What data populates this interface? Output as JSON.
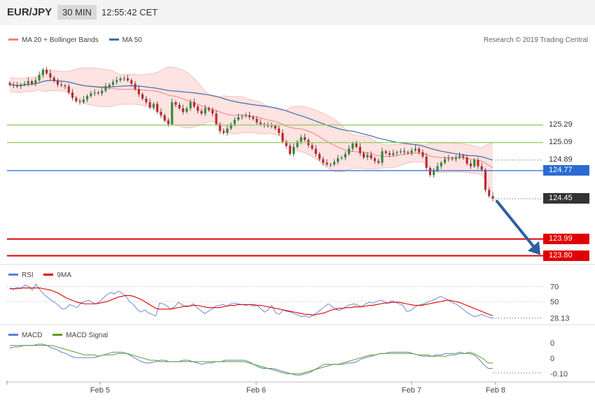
{
  "header": {
    "symbol": "EUR/JPY",
    "timeframe": "30 MIN",
    "time": "12:55:42 CET"
  },
  "credit": "Research © 2019 Trading Central",
  "colors": {
    "bollinger": "#f08080",
    "bollinger_fill": "#fde3e1",
    "ma50": "#3e6ea8",
    "candle_up": "#2e8b3a",
    "candle_down": "#c0272d",
    "resistance": "#8fca5a",
    "support": "#e00000",
    "pivot": "#2a6bd1",
    "last": "#333333",
    "arrow": "#2f5f9e",
    "rsi": "#5a7fd6",
    "rsi_ma": "#e00000",
    "macd": "#5a7fd6",
    "macd_signal": "#5aa01e"
  },
  "chart_data": [
    {
      "type": "candlestick",
      "title": "EUR/JPY",
      "timeframe": "30 MIN",
      "legend": [
        {
          "label": "MA 20 + Bollinger Bands",
          "color": "#f08080"
        },
        {
          "label": "MA 50",
          "color": "#3e6ea8"
        }
      ],
      "x_labels": [
        "Feb 5",
        "Feb 6",
        "Feb 7",
        "Feb 8"
      ],
      "ylim": [
        123.7,
        126.3
      ],
      "close": [
        125.75,
        125.74,
        125.73,
        125.75,
        125.76,
        125.79,
        125.76,
        125.8,
        125.86,
        125.92,
        125.88,
        125.83,
        125.79,
        125.75,
        125.74,
        125.73,
        125.66,
        125.6,
        125.56,
        125.55,
        125.58,
        125.62,
        125.65,
        125.66,
        125.65,
        125.68,
        125.73,
        125.75,
        125.78,
        125.8,
        125.82,
        125.82,
        125.8,
        125.76,
        125.7,
        125.64,
        125.59,
        125.55,
        125.49,
        125.53,
        125.44,
        125.4,
        125.34,
        125.3,
        125.55,
        125.52,
        125.48,
        125.44,
        125.48,
        125.55,
        125.5,
        125.45,
        125.42,
        125.48,
        125.46,
        125.42,
        125.3,
        125.22,
        125.2,
        125.25,
        125.3,
        125.35,
        125.38,
        125.39,
        125.4,
        125.38,
        125.36,
        125.32,
        125.3,
        125.29,
        125.28,
        125.28,
        125.25,
        125.2,
        125.1,
        125.05,
        124.96,
        125.04,
        125.1,
        125.15,
        125.12,
        125.06,
        125.02,
        124.96,
        124.9,
        124.86,
        124.84,
        124.84,
        124.87,
        124.91,
        124.92,
        124.96,
        125.02,
        125.08,
        125.04,
        124.97,
        124.92,
        124.95,
        124.91,
        124.88,
        124.86,
        124.99,
        124.97,
        124.95,
        124.97,
        124.98,
        124.99,
        124.98,
        124.97,
        125.0,
        125.02,
        124.98,
        124.93,
        124.8,
        124.72,
        124.77,
        124.82,
        124.86,
        124.9,
        124.91,
        124.9,
        124.92,
        124.94,
        124.92,
        124.85,
        124.82,
        124.89,
        124.82,
        124.78,
        124.55,
        124.48,
        124.45
      ]
    },
    {
      "type": "line",
      "title": "RSI",
      "legend": [
        {
          "label": "RSI",
          "color": "#5a7fd6"
        },
        {
          "label": "9MA",
          "color": "#e00000"
        }
      ],
      "levels": [
        70,
        50
      ],
      "last_value": "28.13",
      "series": [
        {
          "name": "RSI",
          "values": [
            68,
            66,
            69,
            67,
            72,
            70,
            65,
            73,
            66,
            60,
            56,
            52,
            49,
            45,
            40,
            41,
            46,
            44,
            42,
            48,
            50,
            52,
            49,
            47,
            50,
            55,
            59,
            62,
            60,
            64,
            61,
            57,
            50,
            46,
            40,
            36,
            39,
            35,
            33,
            31,
            48,
            47,
            44,
            40,
            43,
            49,
            46,
            43,
            44,
            47,
            42,
            38,
            34,
            37,
            40,
            44,
            45,
            46,
            44,
            47,
            48,
            47,
            46,
            45,
            46,
            44,
            45,
            41,
            36,
            39,
            45,
            35,
            33,
            39,
            37,
            36,
            34,
            32,
            30,
            31,
            29,
            32,
            35,
            39,
            43,
            47,
            44,
            40,
            38,
            41,
            44,
            46,
            47,
            45,
            43,
            47,
            49,
            48,
            50,
            52,
            50,
            48,
            51,
            49,
            47,
            45,
            37,
            38,
            42,
            45,
            46,
            48,
            50,
            52,
            54,
            57,
            55,
            52,
            49,
            47,
            44,
            40,
            36,
            33,
            30,
            31,
            33,
            31,
            29,
            28.13
          ]
        },
        {
          "name": "9MA",
          "values": [
            67,
            67,
            67,
            68,
            68,
            68,
            68,
            68,
            68,
            67,
            66,
            65,
            63,
            61,
            58,
            55,
            53,
            51,
            49,
            48,
            47,
            47,
            47,
            47,
            48,
            49,
            50,
            52,
            54,
            56,
            57,
            58,
            58,
            57,
            55,
            53,
            50,
            47,
            44,
            41,
            40,
            40,
            40,
            40,
            41,
            42,
            43,
            44,
            44,
            45,
            45,
            44,
            43,
            42,
            42,
            42,
            42,
            43,
            44,
            45,
            45,
            46,
            46,
            46,
            46,
            46,
            45,
            45,
            44,
            43,
            42,
            41,
            40,
            39,
            38,
            37,
            36,
            35,
            34,
            33,
            33,
            32,
            33,
            34,
            35,
            37,
            39,
            40,
            41,
            41,
            42,
            42,
            43,
            43,
            43,
            44,
            45,
            45,
            46,
            47,
            48,
            48,
            49,
            49,
            49,
            48,
            47,
            46,
            45,
            45,
            45,
            46,
            47,
            48,
            49,
            50,
            51,
            52,
            51,
            50,
            49,
            47,
            45,
            43,
            41,
            39,
            37,
            35,
            33,
            31
          ]
        }
      ]
    },
    {
      "type": "line",
      "title": "MACD",
      "legend": [
        {
          "label": "MACD",
          "color": "#5a7fd6"
        },
        {
          "label": "MACD Signal",
          "color": "#5aa01e"
        }
      ],
      "tick_labels": [
        "0",
        "0"
      ],
      "last_value": "-0.10",
      "series": [
        {
          "name": "MACD",
          "values": [
            0.07,
            0.07,
            0.07,
            0.07,
            0.07,
            0.07,
            0.08,
            0.08,
            0.07,
            0.05,
            0.04,
            0.02,
            0.01,
            -0.01,
            -0.02,
            -0.02,
            -0.02,
            -0.02,
            -0.02,
            -0.01,
            0.0,
            0.01,
            0.02,
            0.02,
            0.02,
            0.01,
            -0.01,
            -0.03,
            -0.05,
            -0.06,
            -0.06,
            -0.05,
            -0.04,
            -0.04,
            -0.05,
            -0.05,
            -0.05,
            -0.04,
            -0.04,
            -0.05,
            -0.06,
            -0.07,
            -0.06,
            -0.06,
            -0.05,
            -0.05,
            -0.04,
            -0.04,
            -0.04,
            -0.04,
            -0.04,
            -0.05,
            -0.07,
            -0.09,
            -0.1,
            -0.1,
            -0.1,
            -0.11,
            -0.12,
            -0.13,
            -0.14,
            -0.15,
            -0.15,
            -0.14,
            -0.13,
            -0.11,
            -0.09,
            -0.07,
            -0.07,
            -0.07,
            -0.07,
            -0.07,
            -0.06,
            -0.06,
            -0.05,
            -0.03,
            -0.02,
            -0.01,
            0.0,
            0.01,
            0.01,
            0.02,
            0.02,
            0.02,
            0.02,
            0.02,
            0.01,
            -0.0,
            -0.01,
            -0.01,
            -0.01,
            0.0,
            0.0,
            0.01,
            0.01,
            0.01,
            0.02,
            0.01,
            0.01,
            0.0,
            -0.03,
            -0.07,
            -0.1,
            -0.1
          ]
        },
        {
          "name": "MACD Signal",
          "values": [
            0.05,
            0.06,
            0.06,
            0.07,
            0.07,
            0.07,
            0.07,
            0.07,
            0.07,
            0.07,
            0.06,
            0.05,
            0.04,
            0.03,
            0.02,
            0.01,
            0.0,
            -0.0,
            -0.0,
            -0.01,
            -0.0,
            0.0,
            0.0,
            0.01,
            0.01,
            0.01,
            0.0,
            -0.01,
            -0.02,
            -0.03,
            -0.04,
            -0.04,
            -0.05,
            -0.05,
            -0.05,
            -0.05,
            -0.05,
            -0.05,
            -0.05,
            -0.05,
            -0.05,
            -0.05,
            -0.05,
            -0.05,
            -0.05,
            -0.05,
            -0.05,
            -0.05,
            -0.05,
            -0.05,
            -0.05,
            -0.06,
            -0.07,
            -0.08,
            -0.09,
            -0.1,
            -0.11,
            -0.12,
            -0.13,
            -0.14,
            -0.14,
            -0.14,
            -0.14,
            -0.13,
            -0.12,
            -0.11,
            -0.1,
            -0.09,
            -0.08,
            -0.07,
            -0.07,
            -0.06,
            -0.05,
            -0.04,
            -0.03,
            -0.02,
            -0.01,
            -0.0,
            0.0,
            0.01,
            0.01,
            0.01,
            0.01,
            0.01,
            0.01,
            0.01,
            0.01,
            0.0,
            -0.0,
            -0.0,
            -0.01,
            -0.01,
            -0.01,
            -0.01,
            -0.0,
            0.0,
            0.01,
            0.01,
            0.02,
            0.01,
            -0.01,
            -0.03,
            -0.06,
            -0.06
          ]
        }
      ]
    }
  ],
  "levels": [
    {
      "label": "125.29",
      "value": 125.29,
      "kind": "resistance"
    },
    {
      "label": "125.09",
      "value": 125.09,
      "kind": "resistance"
    },
    {
      "label": "124.89",
      "value": 124.89,
      "kind": "ma50"
    },
    {
      "label": "124.77",
      "value": 124.77,
      "kind": "pivot"
    },
    {
      "label": "124.45",
      "value": 124.45,
      "kind": "last"
    },
    {
      "label": "123.99",
      "value": 123.99,
      "kind": "support"
    },
    {
      "label": "123.80",
      "value": 123.8,
      "kind": "support"
    }
  ],
  "forecast_arrow": {
    "from": 124.42,
    "to": 123.84,
    "direction": "down"
  }
}
